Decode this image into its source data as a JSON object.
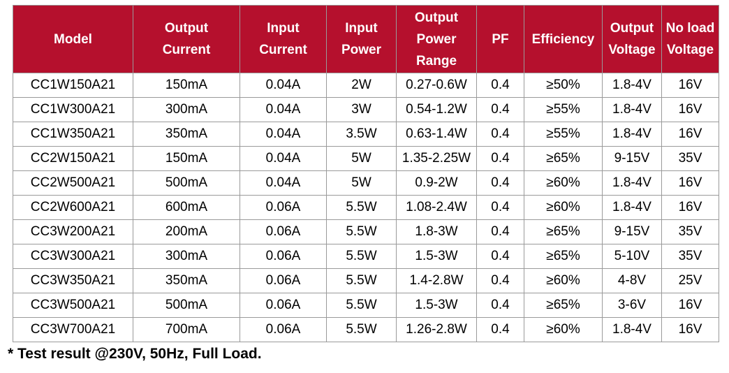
{
  "table": {
    "headers": [
      {
        "line1": "Model",
        "line2": "",
        "line3": ""
      },
      {
        "line1": "Output",
        "line2": "Current",
        "line3": ""
      },
      {
        "line1": "Input",
        "line2": "Current",
        "line3": ""
      },
      {
        "line1": "Input",
        "line2": "Power",
        "line3": ""
      },
      {
        "line1": "Output",
        "line2": "Power",
        "line3": "Range"
      },
      {
        "line1": "PF",
        "line2": "",
        "line3": ""
      },
      {
        "line1": "Efficiency",
        "line2": "",
        "line3": ""
      },
      {
        "line1": "Output",
        "line2": "Voltage",
        "line3": ""
      },
      {
        "line1": "No load",
        "line2": "Voltage",
        "line3": ""
      }
    ],
    "rows": [
      [
        "CC1W150A21",
        "150mA",
        "0.04A",
        "2W",
        "0.27-0.6W",
        "0.4",
        "≥50%",
        "1.8-4V",
        "16V"
      ],
      [
        "CC1W300A21",
        "300mA",
        "0.04A",
        "3W",
        "0.54-1.2W",
        "0.4",
        "≥55%",
        "1.8-4V",
        "16V"
      ],
      [
        "CC1W350A21",
        "350mA",
        "0.04A",
        "3.5W",
        "0.63-1.4W",
        "0.4",
        "≥55%",
        "1.8-4V",
        "16V"
      ],
      [
        "CC2W150A21",
        "150mA",
        "0.04A",
        "5W",
        "1.35-2.25W",
        "0.4",
        "≥65%",
        "9-15V",
        "35V"
      ],
      [
        "CC2W500A21",
        "500mA",
        "0.04A",
        "5W",
        "0.9-2W",
        "0.4",
        "≥60%",
        "1.8-4V",
        "16V"
      ],
      [
        "CC2W600A21",
        "600mA",
        "0.06A",
        "5.5W",
        "1.08-2.4W",
        "0.4",
        "≥60%",
        "1.8-4V",
        "16V"
      ],
      [
        "CC3W200A21",
        "200mA",
        "0.06A",
        "5.5W",
        "1.8-3W",
        "0.4",
        "≥65%",
        "9-15V",
        "35V"
      ],
      [
        "CC3W300A21",
        "300mA",
        "0.06A",
        "5.5W",
        "1.5-3W",
        "0.4",
        "≥65%",
        "5-10V",
        "35V"
      ],
      [
        "CC3W350A21",
        "350mA",
        "0.06A",
        "5.5W",
        "1.4-2.8W",
        "0.4",
        "≥60%",
        "4-8V",
        "25V"
      ],
      [
        "CC3W500A21",
        "500mA",
        "0.06A",
        "5.5W",
        "1.5-3W",
        "0.4",
        "≥65%",
        "3-6V",
        "16V"
      ],
      [
        "CC3W700A21",
        "700mA",
        "0.06A",
        "5.5W",
        "1.26-2.8W",
        "0.4",
        "≥60%",
        "1.8-4V",
        "16V"
      ]
    ]
  },
  "footnote": "* Test result @230V, 50Hz, Full Load.",
  "colors": {
    "header_bg": "#b5102d",
    "header_text": "#ffffff",
    "border": "#9a9a9a"
  }
}
